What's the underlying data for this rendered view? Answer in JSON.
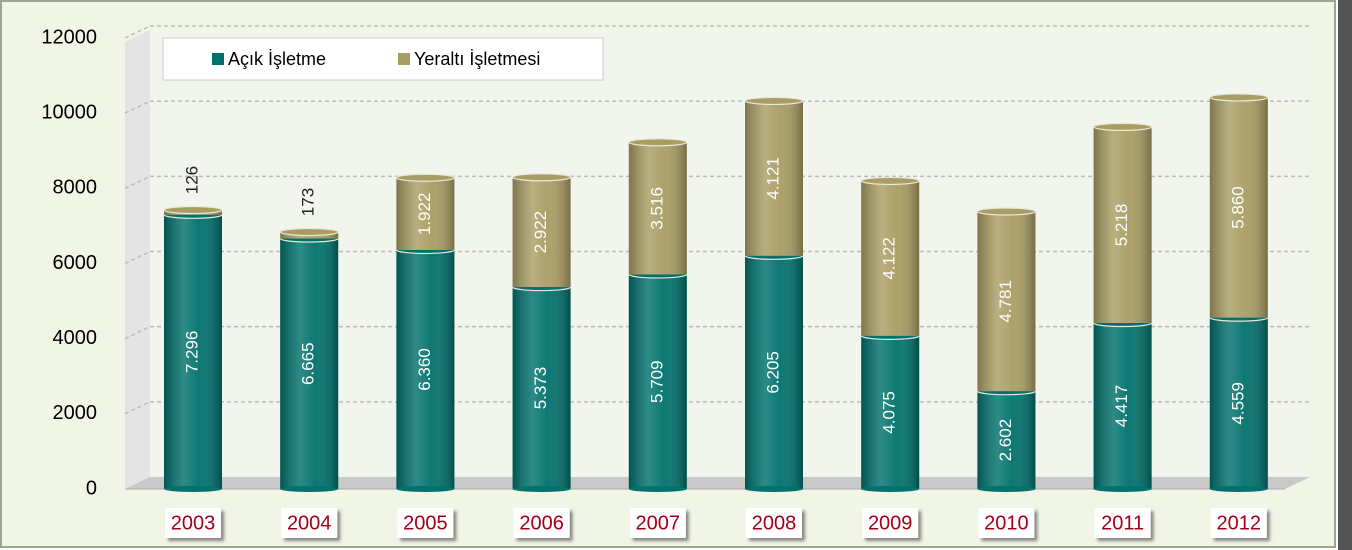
{
  "chart_data": {
    "type": "bar",
    "stacked": true,
    "categories": [
      "2003",
      "2004",
      "2005",
      "2006",
      "2007",
      "2008",
      "2009",
      "2010",
      "2011",
      "2012"
    ],
    "series": [
      {
        "name": "Açık İşletme",
        "color": "#00716c",
        "values": [
          7296,
          6665,
          6360,
          5373,
          5709,
          6205,
          4075,
          2602,
          4417,
          4559
        ],
        "value_labels": [
          "7.296",
          "6.665",
          "6.360",
          "5.373",
          "5.709",
          "6.205",
          "4.075",
          "2.602",
          "4.417",
          "4.559"
        ]
      },
      {
        "name": "Yeraltı İşletmesi",
        "color": "#a99d63",
        "values": [
          126,
          173,
          1922,
          2922,
          3516,
          4121,
          4122,
          4781,
          5218,
          5860
        ],
        "value_labels": [
          "126",
          "173",
          "1.922",
          "2.922",
          "3.516",
          "4.121",
          "4.122",
          "4.781",
          "5.218",
          "5.860"
        ]
      }
    ],
    "ylim": [
      0,
      12000
    ],
    "yticks": [
      0,
      2000,
      4000,
      6000,
      8000,
      10000,
      12000
    ],
    "grid": true,
    "legend": "top-left"
  }
}
